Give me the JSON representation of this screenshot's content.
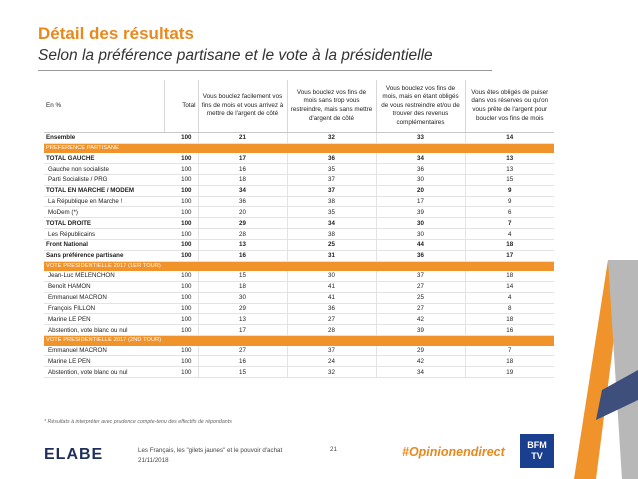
{
  "header": {
    "title": "Détail des résultats",
    "subtitle": "Selon la préférence partisane et le vote à la présidentielle"
  },
  "table": {
    "col_label": "En %",
    "col_total": "Total",
    "col_q1": "Vous bouclez facilement vos fins de mois et vous arrivez à mettre de l'argent de côté",
    "col_q2": "Vous bouclez vos fins de mois sans trop vous restreindre, mais sans mettre d'argent de côté",
    "col_q3": "Vous bouclez vos fins de mois, mais en étant obligés de vous restreindre et/ou de trouver des revenus complémentaires",
    "col_q4": "Vous êtes obligés de puiser dans vos réserves ou qu'on vous prête de l'argent pour boucler vos fins de mois",
    "rows": [
      {
        "label": "Ensemble",
        "total": "100",
        "v1": "21",
        "v2": "32",
        "v3": "33",
        "v4": "14"
      },
      {
        "label": "PREFERENCE PARTISANE"
      },
      {
        "label": "TOTAL GAUCHE",
        "total": "100",
        "v1": "17",
        "v2": "36",
        "v3": "34",
        "v4": "13"
      },
      {
        "label": "Gauche non socialiste",
        "total": "100",
        "v1": "16",
        "v2": "35",
        "v3": "36",
        "v4": "13"
      },
      {
        "label": "Parti Socialiste / PRG",
        "total": "100",
        "v1": "18",
        "v2": "37",
        "v3": "30",
        "v4": "15"
      },
      {
        "label": "TOTAL EN MARCHE / MODEM",
        "total": "100",
        "v1": "34",
        "v2": "37",
        "v3": "20",
        "v4": "9"
      },
      {
        "label": "La République en Marche !",
        "total": "100",
        "v1": "36",
        "v2": "38",
        "v3": "17",
        "v4": "9"
      },
      {
        "label": "MoDem (*)",
        "total": "100",
        "v1": "20",
        "v2": "35",
        "v3": "39",
        "v4": "6"
      },
      {
        "label": "TOTAL DROITE",
        "total": "100",
        "v1": "29",
        "v2": "34",
        "v3": "30",
        "v4": "7"
      },
      {
        "label": "Les Républicains",
        "total": "100",
        "v1": "28",
        "v2": "38",
        "v3": "30",
        "v4": "4"
      },
      {
        "label": "Front National",
        "total": "100",
        "v1": "13",
        "v2": "25",
        "v3": "44",
        "v4": "18"
      },
      {
        "label": "Sans préférence partisane",
        "total": "100",
        "v1": "16",
        "v2": "31",
        "v3": "36",
        "v4": "17"
      },
      {
        "label": "VOTE PRESIDENTIELLE 2017 (1ER TOUR)"
      },
      {
        "label": "Jean-Luc MELENCHON",
        "total": "100",
        "v1": "15",
        "v2": "30",
        "v3": "37",
        "v4": "18"
      },
      {
        "label": "Benoît HAMON",
        "total": "100",
        "v1": "18",
        "v2": "41",
        "v3": "27",
        "v4": "14"
      },
      {
        "label": "Emmanuel MACRON",
        "total": "100",
        "v1": "30",
        "v2": "41",
        "v3": "25",
        "v4": "4"
      },
      {
        "label": "François FILLON",
        "total": "100",
        "v1": "29",
        "v2": "36",
        "v3": "27",
        "v4": "8"
      },
      {
        "label": "Marine LE PEN",
        "total": "100",
        "v1": "13",
        "v2": "27",
        "v3": "42",
        "v4": "18"
      },
      {
        "label": "Abstention, vote blanc ou nul",
        "total": "100",
        "v1": "17",
        "v2": "28",
        "v3": "39",
        "v4": "16"
      },
      {
        "label": "VOTE PRESIDENTIELLE 2017 (2ND TOUR)"
      },
      {
        "label": "Emmanuel MACRON",
        "total": "100",
        "v1": "27",
        "v2": "37",
        "v3": "29",
        "v4": "7"
      },
      {
        "label": "Marine LE PEN",
        "total": "100",
        "v1": "16",
        "v2": "24",
        "v3": "42",
        "v4": "18"
      },
      {
        "label": "Abstention, vote blanc ou nul",
        "total": "100",
        "v1": "15",
        "v2": "32",
        "v3": "34",
        "v4": "19"
      }
    ]
  },
  "footer": {
    "note": "* Résultats à interpréter avec prudence compte-tenu des effectifs de répondants",
    "logo": "ELABE",
    "study": "Les Français, les \"gilets jaunes\" et le pouvoir d'achat",
    "date": "21/11/2018",
    "page": "21",
    "hashtag": "#Opinionendirect",
    "partner_logo_line1": "BFM",
    "partner_logo_line2": "TV"
  },
  "colors": {
    "accent": "#e8891e",
    "section": "#f0932b",
    "logo": "#1e2f5e",
    "partner": "#1b3f8f"
  }
}
